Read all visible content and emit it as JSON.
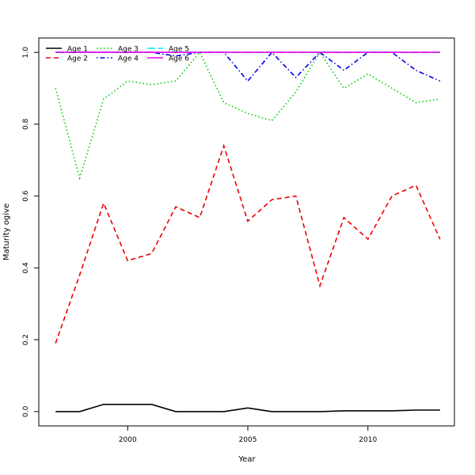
{
  "chart_data": {
    "type": "line",
    "title": "",
    "xlabel": "Year",
    "ylabel": "Maturity ogive",
    "xlim": [
      1996.3,
      2013.6
    ],
    "ylim": [
      -0.04,
      1.04
    ],
    "x_ticks": [
      2000,
      2005,
      2010
    ],
    "y_ticks": [
      0.0,
      0.2,
      0.4,
      0.6,
      0.8,
      1.0
    ],
    "x_tick_labels": [
      "2000",
      "2005",
      "2010"
    ],
    "y_tick_labels": [
      "0.0",
      "0.2",
      "0.4",
      "0.6",
      "0.8",
      "1.0"
    ],
    "grid": false,
    "legend_position": "top-left",
    "x": [
      1997,
      1998,
      1999,
      2000,
      2001,
      2002,
      2003,
      2004,
      2005,
      2006,
      2007,
      2008,
      2009,
      2010,
      2011,
      2012,
      2013
    ],
    "series": [
      {
        "name": "Age 1",
        "color": "#000000",
        "dash": "solid",
        "values": [
          0.0,
          0.0,
          0.02,
          0.02,
          0.02,
          0.0,
          0.0,
          0.0,
          0.01,
          0.0,
          0.0,
          0.0,
          0.002,
          0.002,
          0.002,
          0.004,
          0.004
        ]
      },
      {
        "name": "Age 2",
        "color": "#ee0000",
        "dash": "dashed",
        "values": [
          0.19,
          0.38,
          0.58,
          0.42,
          0.44,
          0.57,
          0.54,
          0.74,
          0.53,
          0.59,
          0.6,
          0.35,
          0.54,
          0.48,
          0.6,
          0.63,
          0.48
        ]
      },
      {
        "name": "Age 3",
        "color": "#00cc00",
        "dash": "dotted",
        "values": [
          0.9,
          0.65,
          0.87,
          0.92,
          0.91,
          0.92,
          1.0,
          0.86,
          0.83,
          0.81,
          0.89,
          1.0,
          0.9,
          0.94,
          0.9,
          0.86,
          0.87
        ]
      },
      {
        "name": "Age 4",
        "color": "#0000ee",
        "dash": "dotdash",
        "values": [
          1.0,
          1.0,
          1.0,
          1.0,
          1.0,
          0.99,
          1.0,
          1.0,
          0.92,
          1.0,
          0.93,
          1.0,
          0.95,
          1.0,
          1.0,
          0.95,
          0.92
        ]
      },
      {
        "name": "Age 5",
        "color": "#00e5ee",
        "dash": "longdash",
        "values": [
          1.0,
          1.0,
          1.0,
          1.0,
          1.0,
          1.0,
          1.0,
          1.0,
          1.0,
          1.0,
          1.0,
          1.0,
          1.0,
          1.0,
          1.0,
          1.0,
          1.0
        ]
      },
      {
        "name": "Age 6",
        "color": "#ee00ee",
        "dash": "solid",
        "values": [
          1.0,
          1.0,
          1.0,
          1.0,
          1.0,
          1.0,
          1.0,
          1.0,
          1.0,
          1.0,
          1.0,
          1.0,
          1.0,
          1.0,
          1.0,
          1.0,
          1.0
        ]
      }
    ]
  }
}
